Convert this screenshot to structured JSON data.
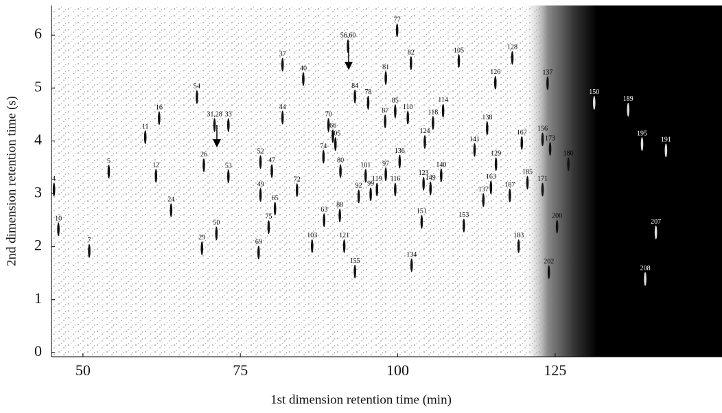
{
  "chart_data": {
    "type": "scatter",
    "x_label": "1st dimension retention time (min)",
    "y_label": "2nd dimension retention time (s)",
    "xlim": [
      45,
      151.5
    ],
    "ylim": [
      -0.08,
      6.56
    ],
    "xticks": [
      50,
      75,
      100,
      125
    ],
    "yticks": [
      0,
      1,
      2,
      3,
      4,
      5,
      6
    ],
    "peaks": [
      {
        "label": "4",
        "x": 45.4,
        "y": 3.08
      },
      {
        "label": "10",
        "x": 46.1,
        "y": 2.33
      },
      {
        "label": "7",
        "x": 51.0,
        "y": 1.92
      },
      {
        "label": "5",
        "x": 54.1,
        "y": 3.42
      },
      {
        "label": "12",
        "x": 61.6,
        "y": 3.34
      },
      {
        "label": "11",
        "x": 59.9,
        "y": 4.07
      },
      {
        "label": "16",
        "x": 62.1,
        "y": 4.43
      },
      {
        "label": "24",
        "x": 64.0,
        "y": 2.69
      },
      {
        "label": "54",
        "x": 68.1,
        "y": 4.83
      },
      {
        "label": "26",
        "x": 69.2,
        "y": 3.54
      },
      {
        "label": "31,28",
        "x": 70.9,
        "y": 4.3
      },
      {
        "label": "29",
        "x": 68.9,
        "y": 1.97
      },
      {
        "label": "50",
        "x": 71.2,
        "y": 2.25
      },
      {
        "label": "33",
        "x": 73.1,
        "y": 4.3
      },
      {
        "label": "53",
        "x": 73.1,
        "y": 3.33
      },
      {
        "label": "52",
        "x": 78.2,
        "y": 3.6
      },
      {
        "label": "47",
        "x": 80.0,
        "y": 3.43
      },
      {
        "label": "49",
        "x": 78.2,
        "y": 2.98
      },
      {
        "label": "65",
        "x": 80.5,
        "y": 2.72
      },
      {
        "label": "75",
        "x": 79.5,
        "y": 2.37
      },
      {
        "label": "69",
        "x": 77.9,
        "y": 1.89
      },
      {
        "label": "37",
        "x": 81.7,
        "y": 5.44
      },
      {
        "label": "44",
        "x": 81.7,
        "y": 4.44
      },
      {
        "label": "40",
        "x": 85.0,
        "y": 5.17
      },
      {
        "label": "72",
        "x": 84.0,
        "y": 3.07
      },
      {
        "label": "103",
        "x": 86.4,
        "y": 2.01
      },
      {
        "label": "70",
        "x": 89.0,
        "y": 4.3
      },
      {
        "label": "66",
        "x": 89.7,
        "y": 4.09
      },
      {
        "label": "105",
        "x": 90.1,
        "y": 3.94
      },
      {
        "label": "74",
        "x": 88.2,
        "y": 3.7
      },
      {
        "label": "80",
        "x": 90.9,
        "y": 3.43
      },
      {
        "label": "63",
        "x": 88.3,
        "y": 2.5
      },
      {
        "label": "88",
        "x": 90.8,
        "y": 2.59
      },
      {
        "label": "56,60",
        "x": 92.1,
        "y": 5.79
      },
      {
        "label": "84",
        "x": 93.2,
        "y": 4.84
      },
      {
        "label": "78",
        "x": 95.3,
        "y": 4.72
      },
      {
        "label": "77",
        "x": 99.9,
        "y": 6.09
      },
      {
        "label": "81",
        "x": 98.1,
        "y": 5.19
      },
      {
        "label": "82",
        "x": 102.1,
        "y": 5.47
      },
      {
        "label": "85",
        "x": 99.6,
        "y": 4.56
      },
      {
        "label": "87",
        "x": 98.0,
        "y": 4.37
      },
      {
        "label": "110",
        "x": 101.6,
        "y": 4.44
      },
      {
        "label": "101",
        "x": 94.9,
        "y": 3.34
      },
      {
        "label": "92",
        "x": 93.8,
        "y": 2.95
      },
      {
        "label": "99",
        "x": 95.7,
        "y": 2.99
      },
      {
        "label": "119",
        "x": 96.7,
        "y": 3.08
      },
      {
        "label": "116",
        "x": 99.6,
        "y": 3.08
      },
      {
        "label": "97",
        "x": 98.1,
        "y": 3.37
      },
      {
        "label": "136",
        "x": 100.3,
        "y": 3.61
      },
      {
        "label": "121",
        "x": 91.5,
        "y": 2.01
      },
      {
        "label": "155",
        "x": 93.2,
        "y": 1.53
      },
      {
        "label": "134",
        "x": 102.2,
        "y": 1.65
      },
      {
        "label": "105",
        "x": 109.7,
        "y": 5.51
      },
      {
        "label": "114",
        "x": 107.2,
        "y": 4.57
      },
      {
        "label": "118",
        "x": 105.6,
        "y": 4.34
      },
      {
        "label": "124",
        "x": 104.3,
        "y": 3.98
      },
      {
        "label": "140",
        "x": 106.9,
        "y": 3.35
      },
      {
        "label": "123",
        "x": 104.1,
        "y": 3.19
      },
      {
        "label": "149",
        "x": 105.2,
        "y": 3.1
      },
      {
        "label": "151",
        "x": 103.8,
        "y": 2.47
      },
      {
        "label": "153",
        "x": 110.5,
        "y": 2.4
      },
      {
        "label": "126",
        "x": 115.5,
        "y": 5.1
      },
      {
        "label": "128",
        "x": 118.2,
        "y": 5.57
      },
      {
        "label": "137",
        "x": 123.8,
        "y": 5.09
      },
      {
        "label": "138",
        "x": 114.2,
        "y": 4.24
      },
      {
        "label": "141",
        "x": 112.2,
        "y": 3.83
      },
      {
        "label": "129",
        "x": 115.6,
        "y": 3.56
      },
      {
        "label": "163",
        "x": 114.8,
        "y": 3.12
      },
      {
        "label": "137",
        "x": 113.6,
        "y": 2.88
      },
      {
        "label": "167",
        "x": 119.7,
        "y": 3.96
      },
      {
        "label": "156",
        "x": 123.0,
        "y": 4.03
      },
      {
        "label": "173",
        "x": 124.2,
        "y": 3.85
      },
      {
        "label": "185",
        "x": 120.6,
        "y": 3.21
      },
      {
        "label": "187",
        "x": 117.8,
        "y": 2.97
      },
      {
        "label": "171",
        "x": 123.0,
        "y": 3.08
      },
      {
        "label": "183",
        "x": 119.2,
        "y": 2.01
      },
      {
        "label": "180",
        "x": 127.1,
        "y": 3.56
      },
      {
        "label": "200",
        "x": 125.3,
        "y": 2.38
      },
      {
        "label": "202",
        "x": 124.0,
        "y": 1.52
      },
      {
        "label": "150",
        "x": 131.2,
        "y": 4.72
      },
      {
        "label": "189",
        "x": 136.6,
        "y": 4.59
      },
      {
        "label": "195",
        "x": 138.8,
        "y": 3.94
      },
      {
        "label": "191",
        "x": 142.6,
        "y": 3.82
      },
      {
        "label": "207",
        "x": 141.0,
        "y": 2.27
      },
      {
        "label": "208",
        "x": 139.3,
        "y": 1.39
      }
    ]
  }
}
